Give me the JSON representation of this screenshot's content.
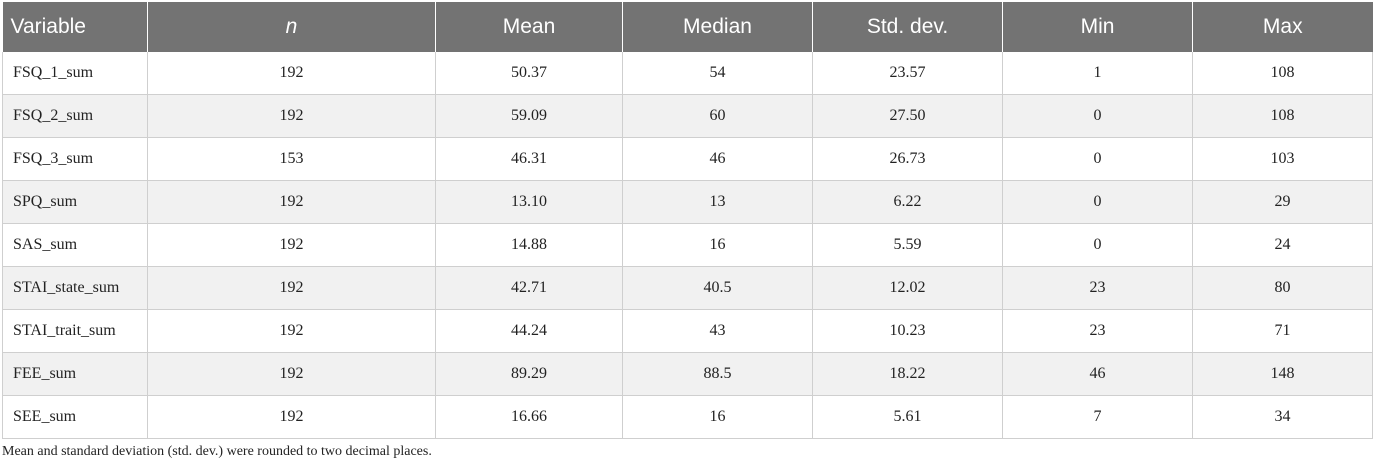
{
  "table": {
    "headers": [
      "Variable",
      "n",
      "Mean",
      "Median",
      "Std. dev.",
      "Min",
      "Max"
    ],
    "rows": [
      [
        "FSQ_1_sum",
        "192",
        "50.37",
        "54",
        "23.57",
        "1",
        "108"
      ],
      [
        "FSQ_2_sum",
        "192",
        "59.09",
        "60",
        "27.50",
        "0",
        "108"
      ],
      [
        "FSQ_3_sum",
        "153",
        "46.31",
        "46",
        "26.73",
        "0",
        "103"
      ],
      [
        "SPQ_sum",
        "192",
        "13.10",
        "13",
        "6.22",
        "0",
        "29"
      ],
      [
        "SAS_sum",
        "192",
        "14.88",
        "16",
        "5.59",
        "0",
        "24"
      ],
      [
        "STAI_state_sum",
        "192",
        "42.71",
        "40.5",
        "12.02",
        "23",
        "80"
      ],
      [
        "STAI_trait_sum",
        "192",
        "44.24",
        "43",
        "10.23",
        "23",
        "71"
      ],
      [
        "FEE_sum",
        "192",
        "89.29",
        "88.5",
        "18.22",
        "46",
        "148"
      ],
      [
        "SEE_sum",
        "192",
        "16.66",
        "16",
        "5.61",
        "7",
        "34"
      ]
    ]
  },
  "footnote": "Mean and standard deviation (std. dev.) were rounded to two decimal places.",
  "colors": {
    "header_bg": "#737373",
    "header_text": "#ffffff",
    "alt_row_bg": "#f1f1f1",
    "grid": "#cfcfcf"
  }
}
